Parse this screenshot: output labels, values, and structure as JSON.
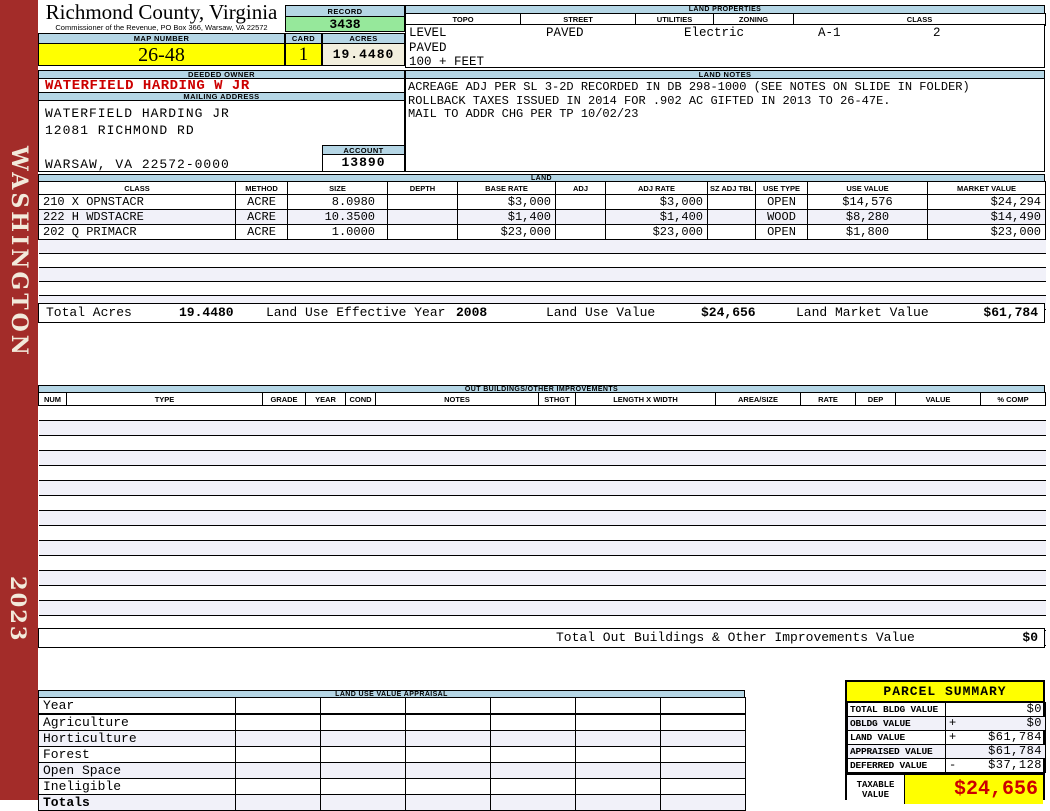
{
  "sidebar": {
    "region": "WASHINGTON",
    "year": "2023"
  },
  "header": {
    "county_title": "Richmond County, Virginia",
    "commissioner_line": "Commissioner of the Revenue, PO Box 366, Warsaw, VA 22572",
    "record_label": "RECORD",
    "record_value": "3438",
    "map_number_label": "MAP NUMBER",
    "map_number_value": "26-48",
    "card_label": "CARD",
    "card_value": "1",
    "acres_label": "ACRES",
    "acres_value": "19.4480"
  },
  "land_properties": {
    "title": "LAND PROPERTIES",
    "columns": [
      "TOPO",
      "STREET",
      "UTILITIES",
      "ZONING",
      "CLASS"
    ],
    "topo_lines": "LEVEL\nPAVED\n100 + FEET",
    "street": "PAVED",
    "utilities": "Electric",
    "zoning": "A-1",
    "class": "2"
  },
  "owner": {
    "deeded_owner_label": "DEEDED OWNER",
    "deeded_owner": "WATERFIELD HARDING W JR",
    "mailing_address_label": "MAILING ADDRESS",
    "address_lines": [
      "WATERFIELD HARDING JR",
      "12081 RICHMOND RD",
      "",
      "WARSAW, VA 22572-0000"
    ],
    "account_label": "ACCOUNT",
    "account_value": "13890"
  },
  "land_notes": {
    "title": "LAND NOTES",
    "lines": "ACREAGE ADJ PER SL 3-2D RECORDED IN DB 298-1000 (SEE NOTES ON SLIDE IN FOLDER)\nROLLBACK TAXES ISSUED IN 2014 FOR .902 AC GIFTED IN 2013 TO 26-47E.\nMAIL TO ADDR CHG PER TP 10/02/23"
  },
  "land_table": {
    "title": "LAND",
    "columns": [
      "CLASS",
      "METHOD",
      "SIZE",
      "DEPTH",
      "BASE RATE",
      "ADJ",
      "ADJ RATE",
      "SZ ADJ TBL",
      "USE TYPE",
      "USE VALUE",
      "MARKET VALUE"
    ],
    "rows": [
      [
        "210 X OPNSTACR",
        "ACRE",
        "8.0980",
        "",
        "$3,000",
        "",
        "$3,000",
        "",
        "OPEN",
        "$14,576",
        "$24,294"
      ],
      [
        "222 H WDSTACRE",
        "ACRE",
        "10.3500",
        "",
        "$1,400",
        "",
        "$1,400",
        "",
        "WOOD",
        "$8,280",
        "$14,490"
      ],
      [
        "202 Q PRIMACR",
        "ACRE",
        "1.0000",
        "",
        "$23,000",
        "",
        "$23,000",
        "",
        "OPEN",
        "$1,800",
        "$23,000"
      ]
    ],
    "empty_row_count": 5,
    "total_acres_label": "Total Acres",
    "total_acres": "19.4480",
    "effective_year_label": "Land Use Effective Year",
    "effective_year": "2008",
    "use_value_label": "Land Use Value",
    "use_value": "$24,656",
    "market_value_label": "Land Market Value",
    "market_value": "$61,784"
  },
  "out_buildings": {
    "title": "OUT BUILDINGS/OTHER IMPROVEMENTS",
    "columns": [
      "NUM",
      "TYPE",
      "GRADE",
      "YEAR",
      "COND",
      "NOTES",
      "STHGT",
      "LENGTH X WIDTH",
      "AREA/SIZE",
      "RATE",
      "DEP",
      "VALUE",
      "% COMP"
    ],
    "empty_row_count": 16,
    "total_label": "Total Out Buildings & Other Improvements Value",
    "total_value": "$0"
  },
  "land_use_appraisal": {
    "title": "LAND USE VALUE APPRAISAL",
    "year_label": "Year",
    "row_labels": [
      "Agriculture",
      "Horticulture",
      "Forest",
      "Open Space",
      "Ineligible",
      "Totals"
    ]
  },
  "parcel_summary": {
    "title": "PARCEL SUMMARY",
    "rows": [
      {
        "label": "TOTAL BLDG VALUE",
        "op": "",
        "value": "$0"
      },
      {
        "label": "OBLDG VALUE",
        "op": "+",
        "value": "$0"
      },
      {
        "label": "LAND VALUE",
        "op": "+",
        "value": "$61,784"
      },
      {
        "label": "APPRAISED VALUE",
        "op": "",
        "value": "$61,784"
      },
      {
        "label": "DEFERRED VALUE",
        "op": "-",
        "value": "$37,128"
      }
    ],
    "taxable_label": "TAXABLE VALUE",
    "taxable_value": "$24,656"
  },
  "colors": {
    "spine_red": "#A32C29",
    "section_bar_blue": "#B5D6E5",
    "record_green": "#96E89B",
    "highlight_yellow": "#FFFF00",
    "acres_cream": "#F2EFDE",
    "alert_red_text": "#CC0000",
    "row_stripe": "#F1F1F9"
  }
}
